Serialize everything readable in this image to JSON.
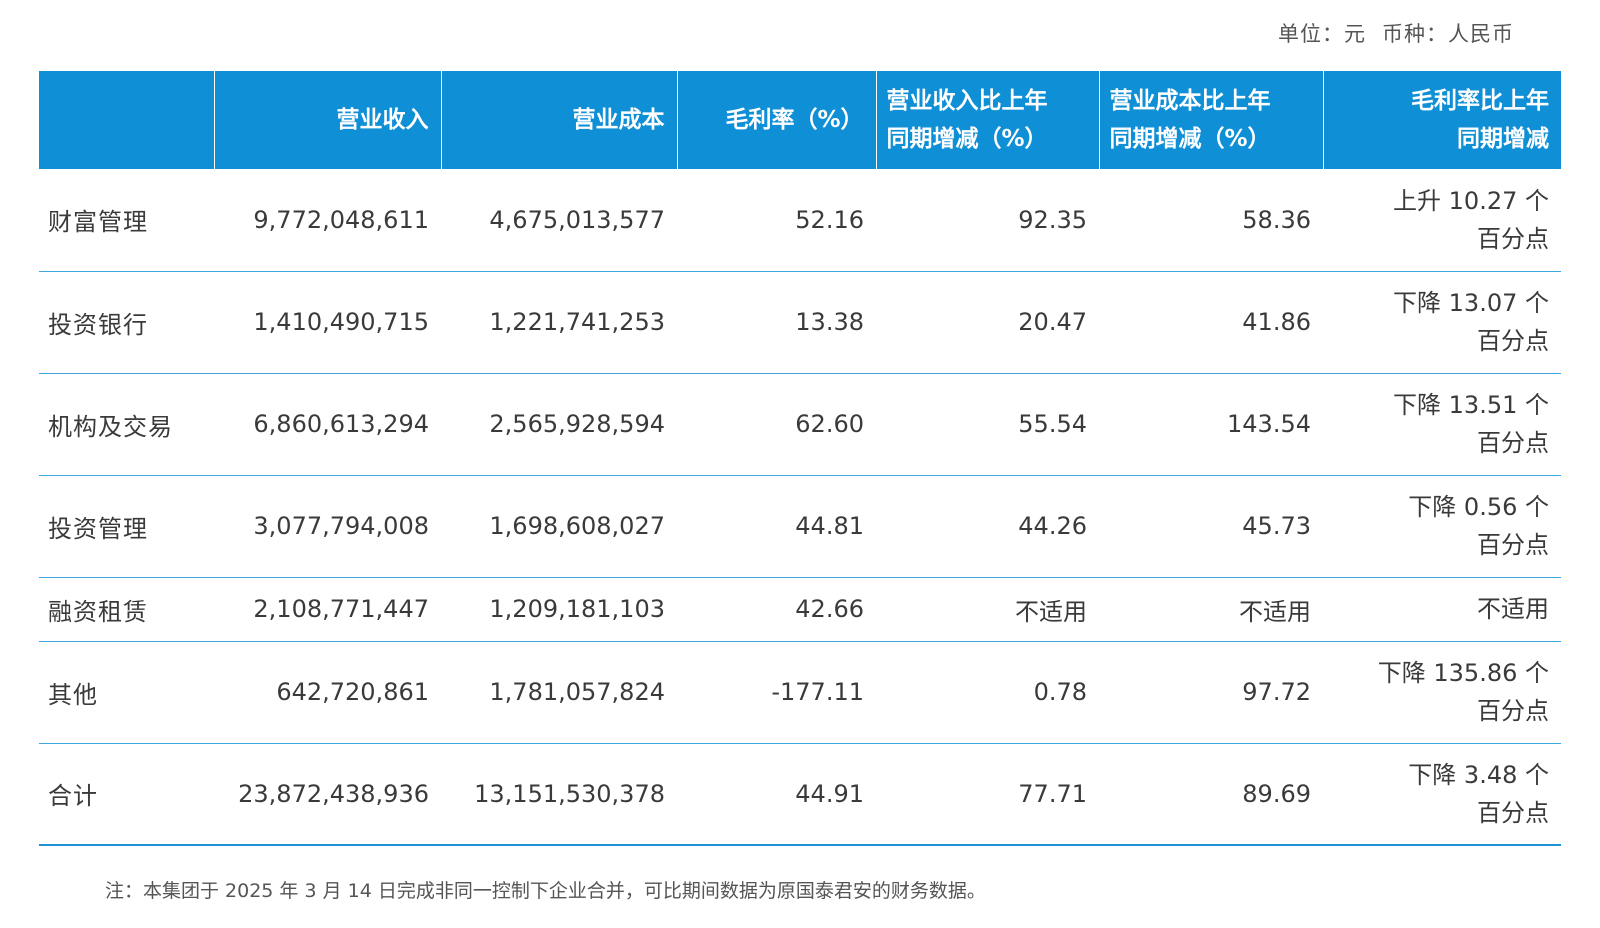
{
  "unit_label": "单位：元",
  "currency_label": "币种：人民币",
  "headers": {
    "segment": "",
    "revenue": "营业收入",
    "cost": "营业成本",
    "gross_margin": "毛利率（%）",
    "revenue_change_line1": "营业收入比上年",
    "revenue_change_line2": "同期增减（%）",
    "cost_change_line1": "营业成本比上年",
    "cost_change_line2": "同期增减（%）",
    "gm_change_line1": "毛利率比上年",
    "gm_change_line2": "同期增减"
  },
  "rows": [
    {
      "segment": "财富管理",
      "revenue": "9,772,048,611",
      "cost": "4,675,013,577",
      "gross_margin": "52.16",
      "revenue_change": "92.35",
      "cost_change": "58.36",
      "gm_change_line1": "上升 10.27 个",
      "gm_change_line2": "百分点"
    },
    {
      "segment": "投资银行",
      "revenue": "1,410,490,715",
      "cost": "1,221,741,253",
      "gross_margin": "13.38",
      "revenue_change": "20.47",
      "cost_change": "41.86",
      "gm_change_line1": "下降 13.07 个",
      "gm_change_line2": "百分点"
    },
    {
      "segment": "机构及交易",
      "revenue": "6,860,613,294",
      "cost": "2,565,928,594",
      "gross_margin": "62.60",
      "revenue_change": "55.54",
      "cost_change": "143.54",
      "gm_change_line1": "下降 13.51 个",
      "gm_change_line2": "百分点"
    },
    {
      "segment": "投资管理",
      "revenue": "3,077,794,008",
      "cost": "1,698,608,027",
      "gross_margin": "44.81",
      "revenue_change": "44.26",
      "cost_change": "45.73",
      "gm_change_line1": "下降 0.56 个",
      "gm_change_line2": "百分点"
    },
    {
      "segment": "融资租赁",
      "revenue": "2,108,771,447",
      "cost": "1,209,181,103",
      "gross_margin": "42.66",
      "revenue_change": "不适用",
      "cost_change": "不适用",
      "gm_change_line1": "不适用",
      "gm_change_line2": ""
    },
    {
      "segment": "其他",
      "revenue": "642,720,861",
      "cost": "1,781,057,824",
      "gross_margin": "-177.11",
      "revenue_change": "0.78",
      "cost_change": "97.72",
      "gm_change_line1": "下降 135.86 个",
      "gm_change_line2": "百分点"
    },
    {
      "segment": "合计",
      "revenue": "23,872,438,936",
      "cost": "13,151,530,378",
      "gross_margin": "44.91",
      "revenue_change": "77.71",
      "cost_change": "89.69",
      "gm_change_line1": "下降 3.48 个",
      "gm_change_line2": "百分点"
    }
  ],
  "note": "注：本集团于 2025 年 3 月 14 日完成非同一控制下企业合并，可比期间数据为原国泰君安的财务数据。"
}
